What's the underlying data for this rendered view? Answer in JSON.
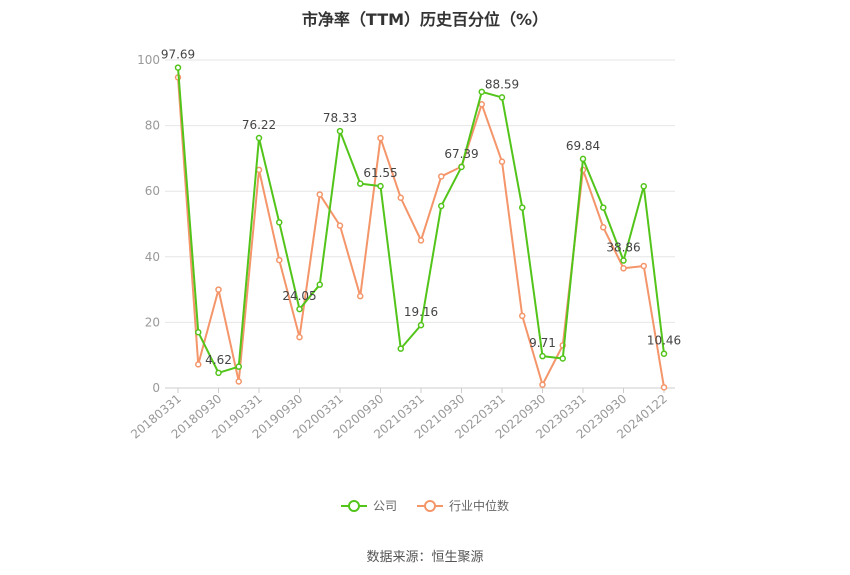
{
  "chart_data": {
    "type": "line",
    "title": "市净率（TTM）历史百分位（%）",
    "xlabel": "",
    "ylabel": "",
    "ylim": [
      0,
      100
    ],
    "yticks": [
      0,
      20,
      40,
      60,
      80,
      100
    ],
    "x_tick_labels": [
      "20180331",
      "20180930",
      "20190331",
      "20190930",
      "20200331",
      "20200930",
      "20210331",
      "20210930",
      "20220331",
      "20220930",
      "20230331",
      "20230930",
      "20240122"
    ],
    "x": [
      "20180331",
      "20180630",
      "20180930",
      "20181231",
      "20190331",
      "20190630",
      "20190930",
      "20191231",
      "20200331",
      "20200630",
      "20200930",
      "20201231",
      "20210331",
      "20210630",
      "20210930",
      "20211231",
      "20220331",
      "20220630",
      "20220930",
      "20221231",
      "20230331",
      "20230630",
      "20230930",
      "20231231",
      "20240122"
    ],
    "series": [
      {
        "name": "公司",
        "color": "#52c41a",
        "values": [
          97.69,
          17,
          4.62,
          6.5,
          76.22,
          50.5,
          24.05,
          31.5,
          78.33,
          62.3,
          61.55,
          12,
          19.16,
          55.5,
          67.39,
          90.3,
          88.59,
          55,
          9.71,
          9,
          69.84,
          55,
          38.86,
          61.5,
          10.46
        ],
        "labels": {
          "0": "97.69",
          "2": "4.62",
          "4": "76.22",
          "6": "24.05",
          "8": "78.33",
          "10": "61.55",
          "12": "19.16",
          "14": "67.39",
          "16": "88.59",
          "18": "9.71",
          "20": "69.84",
          "22": "38.86",
          "24": "10.46"
        }
      },
      {
        "name": "行业中位数",
        "color": "#f4956a",
        "values": [
          94.7,
          7.2,
          30,
          2,
          66.5,
          39,
          15.5,
          59,
          49.5,
          28,
          76.2,
          58,
          45,
          64.5,
          67.5,
          86.5,
          69,
          22,
          1,
          13,
          66.5,
          49,
          36.5,
          37.2,
          0.2
        ]
      }
    ],
    "legend_position": "bottom",
    "grid": true
  },
  "source_text": "数据来源：恒生聚源"
}
